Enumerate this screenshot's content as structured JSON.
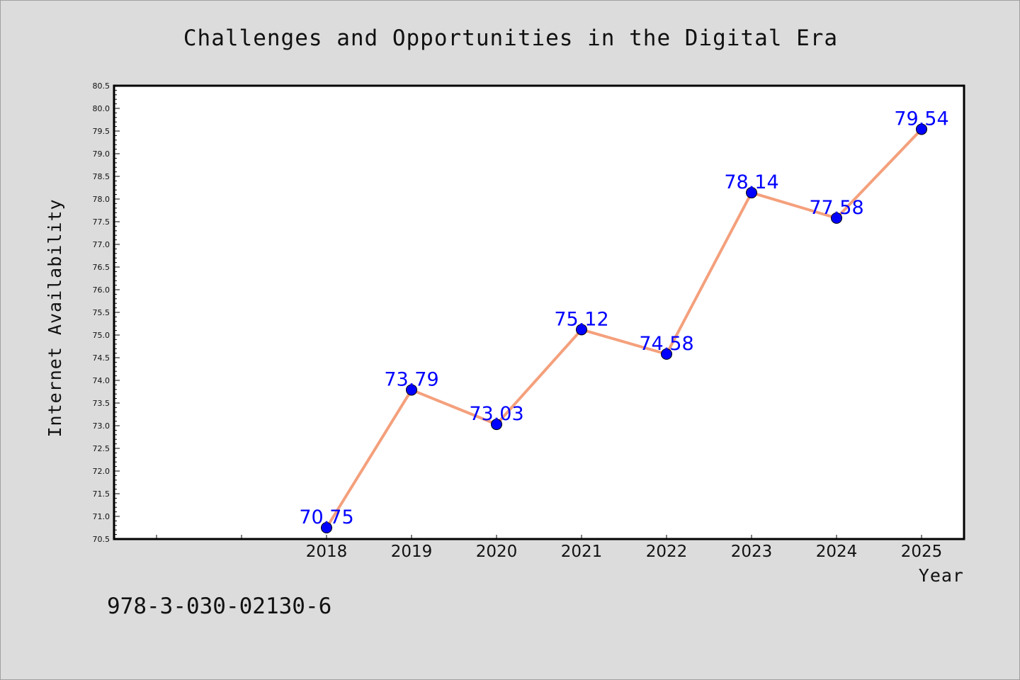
{
  "chart_data": {
    "type": "line",
    "title": "Challenges and Opportunities in the Digital Era",
    "xlabel": "Year",
    "ylabel": "Internet Availability",
    "x": [
      "2018",
      "2019",
      "2020",
      "2021",
      "2022",
      "2023",
      "2024",
      "2025"
    ],
    "series": [
      {
        "values": [
          70.75,
          73.79,
          73.03,
          75.12,
          74.58,
          78.14,
          77.58,
          79.54
        ],
        "data_labels": [
          "70.75",
          "73.79",
          "73.03",
          "75.12",
          "74.58",
          "78.14",
          "77.58",
          "79.54"
        ],
        "line_color": "#f4a07c",
        "marker_color": "#0000ff"
      }
    ],
    "ylim": [
      70.5,
      80.5
    ],
    "yticks": [
      "70.5",
      "71.0",
      "71.5",
      "72.0",
      "72.5",
      "73.0",
      "73.5",
      "74.0",
      "74.5",
      "75.0",
      "75.5",
      "76.0",
      "76.5",
      "77.0",
      "77.5",
      "78.0",
      "78.5",
      "79.0",
      "79.5",
      "80.0",
      "80.5"
    ],
    "grid": false,
    "legend": "none",
    "background_color": "#dcdcdc",
    "plot_background_color": "#ffffff"
  },
  "footnote": "978-3-030-02130-6"
}
